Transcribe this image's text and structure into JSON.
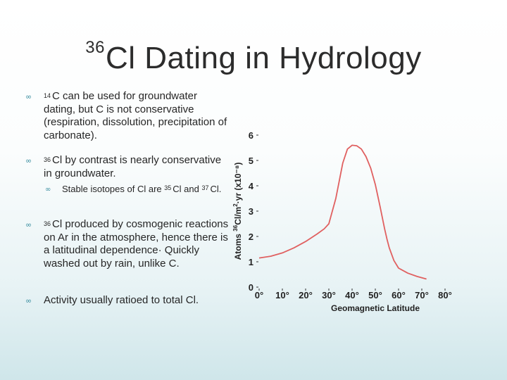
{
  "slide": {
    "title_sup": "36",
    "title_main": "Cl Dating in Hydrology",
    "bullets": [
      {
        "sup": "14",
        "text": "C can be used for groundwater dating, but C is not conservative (respiration, dissolution, precipitation of carbonate)."
      },
      {
        "sup": "36",
        "text": "Cl by contrast is nearly conservative in groundwater."
      },
      {
        "sup": "36",
        "text": "Cl produced by cosmogenic reactions on Ar in the atmosphere, hence there is a latitudinal dependence· Quickly washed out by rain, unlike C."
      },
      {
        "sup": "",
        "text": "Activity usually ratioed to total Cl."
      }
    ],
    "sub_bullet": {
      "pre": "Stable isotopes of Cl are ",
      "sup1": "35",
      "mid": "Cl and ",
      "sup2": "37",
      "post": "Cl."
    }
  },
  "colors": {
    "bullet_mark": "#3a8ea0",
    "curve": "#e06060",
    "axis": "#333333"
  },
  "icons": {
    "bullet": "infinity-bullet-icon"
  },
  "chart_data": {
    "type": "line",
    "title": "",
    "xlabel": "Geomagnetic Latitude",
    "ylabel_pre": "Atoms ",
    "ylabel_sup": "36",
    "ylabel_mid": "Cl/m",
    "ylabel_sup2": "2",
    "ylabel_post": "·yr (x10⁻⁸)",
    "xlim": [
      0,
      90
    ],
    "ylim": [
      0,
      6
    ],
    "x_ticks": [
      {
        "value": 0,
        "label": "0°"
      },
      {
        "value": 10,
        "label": "10°"
      },
      {
        "value": 20,
        "label": "20°"
      },
      {
        "value": 30,
        "label": "30°"
      },
      {
        "value": 40,
        "label": "40°"
      },
      {
        "value": 50,
        "label": "50°"
      },
      {
        "value": 60,
        "label": "60°"
      },
      {
        "value": 70,
        "label": "70°"
      },
      {
        "value": 80,
        "label": "80°"
      }
    ],
    "y_ticks": [
      0,
      1,
      2,
      3,
      4,
      5,
      6
    ],
    "series": [
      {
        "x": [
          0,
          5,
          10,
          15,
          20,
          25,
          28,
          30,
          33,
          36,
          38,
          40,
          42,
          44,
          46,
          48,
          50,
          52,
          54,
          55,
          56,
          58,
          60,
          64,
          68,
          72
        ],
        "y": [
          1.15,
          1.22,
          1.35,
          1.55,
          1.8,
          2.1,
          2.3,
          2.5,
          3.5,
          4.9,
          5.45,
          5.6,
          5.58,
          5.45,
          5.15,
          4.7,
          4.05,
          3.2,
          2.3,
          1.9,
          1.55,
          1.05,
          0.75,
          0.55,
          0.42,
          0.32
        ]
      }
    ]
  }
}
